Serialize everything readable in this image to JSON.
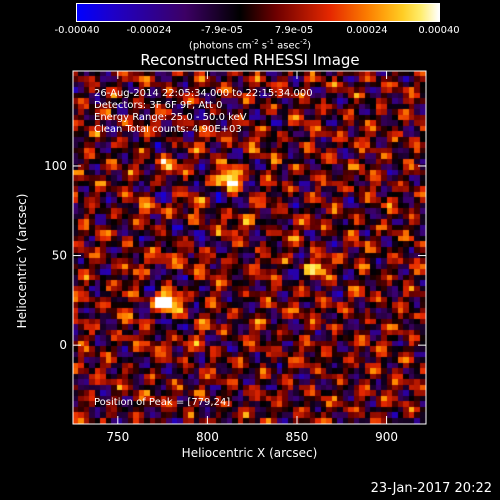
{
  "colorbar": {
    "tick_labels": [
      "-0.00040",
      "-0.00024",
      "-7.9e-05",
      "7.9e-05",
      "0.00024",
      "0.00040"
    ],
    "tick_values": [
      -0.0004,
      -0.00024,
      -7.9e-05,
      7.9e-05,
      0.00024,
      0.0004
    ],
    "range": [
      -0.0004,
      0.0004
    ],
    "units_prefix": "(photons cm",
    "units_exp1": "-2",
    "units_mid": " s",
    "units_exp2": "-1",
    "units_mid2": " asec",
    "units_exp3": "-2",
    "units_suffix": ")"
  },
  "annotations": {
    "time_range": "26-Aug-2014 22:05:34.000 to 22:15:34.000",
    "detectors": "Detectors: 3F 6F 9F, Att 0",
    "energy": "Energy Range: 25.0 - 50.0 keV",
    "clean": "Clean    Total counts: 4.90E+03",
    "peak": "Position of Peak = [779,24]"
  },
  "footer": {
    "timestamp": "23-Jan-2017 20:22"
  },
  "colors": {
    "negative": "#0000ff",
    "positive_max": "#ffffff",
    "background": "#000000"
  },
  "chart_data": {
    "type": "heatmap",
    "title": "Reconstructed RHESSI Image",
    "xlabel": "Heliocentric X (arcsec)",
    "ylabel": "Heliocentric Y (arcsec)",
    "xlim": [
      725,
      922
    ],
    "ylim": [
      -44,
      153
    ],
    "x_ticks": [
      750,
      800,
      850,
      900
    ],
    "y_ticks": [
      0,
      50,
      100
    ],
    "peak_position": [
      779,
      24
    ],
    "sources": [
      {
        "x": 779,
        "y": 24,
        "peak": 0.0004
      },
      {
        "x": 813,
        "y": 93,
        "peak": 0.00036
      },
      {
        "x": 863,
        "y": 44,
        "peak": 0.00026
      },
      {
        "x": 778,
        "y": 99,
        "peak": 0.00016
      }
    ]
  }
}
